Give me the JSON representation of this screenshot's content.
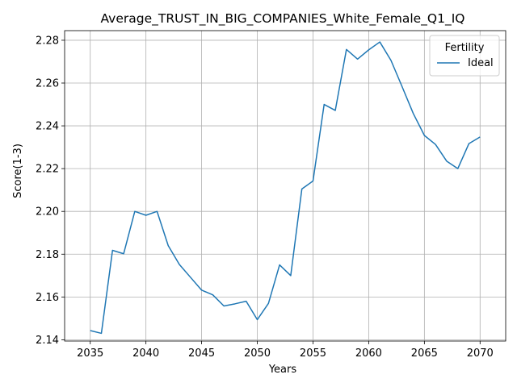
{
  "chart_data": {
    "type": "line",
    "title": "Average_TRUST_IN_BIG_COMPANIES_White_Female_Q1_IQ",
    "xlabel": "Years",
    "ylabel": "Score(1-3)",
    "xlim": [
      2032.7,
      2072.3
    ],
    "ylim": [
      2.1394,
      2.2845
    ],
    "xticks": [
      2035,
      2040,
      2045,
      2050,
      2055,
      2060,
      2065,
      2070
    ],
    "yticks": [
      2.14,
      2.16,
      2.18,
      2.2,
      2.22,
      2.24,
      2.26,
      2.28
    ],
    "ytick_labels": [
      "2.14",
      "2.16",
      "2.18",
      "2.20",
      "2.22",
      "2.24",
      "2.26",
      "2.28"
    ],
    "grid": true,
    "legend": {
      "title": "Fertility",
      "placement": "upper right"
    },
    "series": [
      {
        "name": "Ideal",
        "color": "#1f77b4",
        "x": [
          2035,
          2036,
          2037,
          2038,
          2039,
          2040,
          2041,
          2042,
          2043,
          2044,
          2045,
          2046,
          2047,
          2048,
          2049,
          2050,
          2051,
          2052,
          2053,
          2054,
          2055,
          2056,
          2057,
          2058,
          2059,
          2060,
          2061,
          2062,
          2063,
          2064,
          2065,
          2066,
          2067,
          2068,
          2069,
          2070
        ],
        "values": [
          2.1443,
          2.143,
          2.1818,
          2.1802,
          2.2,
          2.1982,
          2.2,
          2.184,
          2.1752,
          2.1692,
          2.1632,
          2.161,
          2.1558,
          2.1568,
          2.158,
          2.1494,
          2.157,
          2.175,
          2.17,
          2.2105,
          2.2142,
          2.25,
          2.2472,
          2.2757,
          2.2712,
          2.2755,
          2.2792,
          2.2706,
          2.2583,
          2.2458,
          2.2355,
          2.2313,
          2.2235,
          2.22,
          2.2317,
          2.2348
        ]
      }
    ]
  }
}
